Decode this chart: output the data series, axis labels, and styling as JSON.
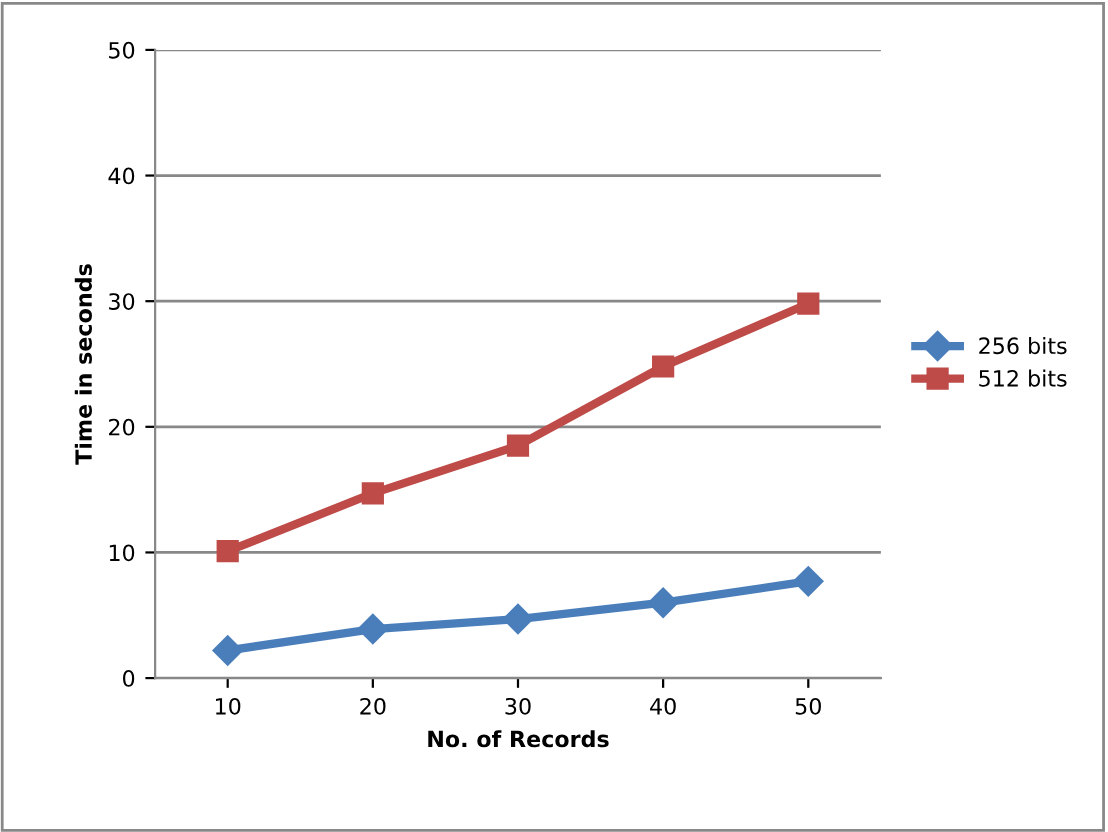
{
  "chart_data": {
    "type": "line",
    "xlabel": "No. of Records",
    "ylabel": "Time in seconds",
    "categories": [
      "10",
      "20",
      "30",
      "40",
      "50"
    ],
    "series": [
      {
        "name": "256 bits",
        "color": "#4a7ebb",
        "marker": "diamond",
        "values": [
          2.2,
          3.9,
          4.7,
          6.0,
          7.7
        ]
      },
      {
        "name": "512 bits",
        "color": "#be4b48",
        "marker": "square",
        "values": [
          10.1,
          14.7,
          18.5,
          24.8,
          29.8
        ]
      }
    ],
    "ylim": [
      0,
      50
    ],
    "yticks": [
      0,
      10,
      20,
      30,
      40,
      50
    ],
    "grid": "y",
    "legend": "right",
    "line_style": "solid"
  }
}
